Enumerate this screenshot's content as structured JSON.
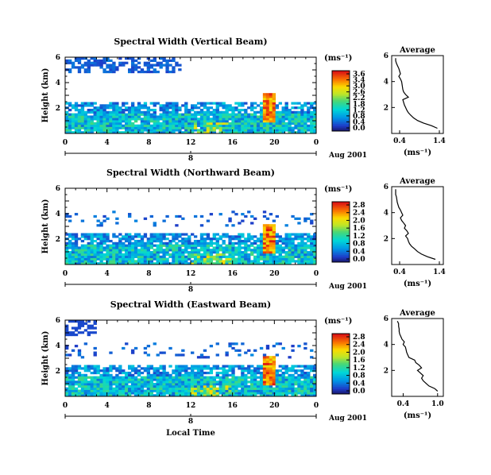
{
  "x_axis_label": "Local Time",
  "date_label": "Aug 2001",
  "colorbar_unit": "(ms⁻¹)",
  "avg_xlabel": "(ms⁻¹)",
  "chart_data": [
    {
      "type": "heatmap",
      "title": "Spectral Width (Vertical Beam)",
      "ylabel": "Height (km)",
      "xlabel": "",
      "x_ticks": [
        "0",
        "4",
        "8",
        "12",
        "16",
        "20",
        "0"
      ],
      "x_range": [
        0,
        24
      ],
      "y_ticks": [
        "2",
        "4",
        "6"
      ],
      "y_range": [
        0,
        6
      ],
      "day_label": "8",
      "colorbar_ticks": [
        "3.6",
        "3.4",
        "3.0",
        "2.6",
        "2.2",
        "1.8",
        "1.2",
        "0.8",
        "0.4",
        "0.0"
      ],
      "colorbar_range": [
        0.0,
        3.6
      ],
      "avg": {
        "title": "Average",
        "x_ticks": [
          "0.4",
          "1.4"
        ],
        "x_range": [
          0.2,
          1.5
        ],
        "y_ticks": [
          "2",
          "4",
          "6"
        ],
        "y_range": [
          0,
          6
        ],
        "height_km": [
          0.4,
          0.6,
          0.8,
          1.0,
          1.2,
          1.4,
          1.6,
          1.8,
          2.0,
          2.2,
          2.4,
          2.6,
          2.8,
          3.0,
          3.2,
          3.4,
          3.6,
          3.8,
          4.0,
          4.2,
          4.4,
          4.6,
          4.8,
          5.0,
          5.2,
          5.4,
          5.6,
          5.8
        ],
        "width_ms": [
          1.35,
          1.2,
          1.0,
          0.85,
          0.75,
          0.68,
          0.62,
          0.58,
          0.55,
          0.52,
          0.5,
          0.48,
          0.62,
          0.55,
          0.5,
          0.48,
          0.47,
          0.46,
          0.45,
          0.42,
          0.38,
          0.42,
          0.4,
          0.38,
          0.35,
          0.32,
          0.3,
          0.3
        ]
      }
    },
    {
      "type": "heatmap",
      "title": "Spectral Width (Northward Beam)",
      "ylabel": "Height (km)",
      "xlabel": "",
      "x_ticks": [
        "0",
        "4",
        "8",
        "12",
        "16",
        "20",
        "0"
      ],
      "x_range": [
        0,
        24
      ],
      "y_ticks": [
        "2",
        "4",
        "6"
      ],
      "y_range": [
        0,
        6
      ],
      "day_label": "8",
      "colorbar_ticks": [
        "2.8",
        "2.4",
        "2.0",
        "1.6",
        "1.2",
        "0.8",
        "0.4",
        "0.0"
      ],
      "colorbar_range": [
        0.0,
        2.8
      ],
      "avg": {
        "title": "Average",
        "x_ticks": [
          "0.4",
          "1.4"
        ],
        "x_range": [
          0.2,
          1.5
        ],
        "y_ticks": [
          "2",
          "4",
          "6"
        ],
        "y_range": [
          0,
          6
        ],
        "height_km": [
          0.4,
          0.6,
          0.8,
          1.0,
          1.2,
          1.4,
          1.6,
          1.8,
          2.0,
          2.2,
          2.4,
          2.6,
          2.8,
          3.0,
          3.2,
          3.4,
          3.6,
          3.8,
          4.0,
          4.2,
          4.4,
          4.6,
          4.8,
          5.0,
          5.2,
          5.4,
          5.6,
          5.8
        ],
        "width_ms": [
          1.3,
          1.1,
          0.95,
          0.85,
          0.78,
          0.7,
          0.65,
          0.62,
          0.6,
          0.55,
          0.62,
          0.58,
          0.52,
          0.55,
          0.5,
          0.45,
          0.42,
          0.48,
          0.45,
          0.42,
          0.38,
          0.36,
          0.34,
          0.33,
          0.32,
          0.3,
          0.3,
          0.3
        ]
      }
    },
    {
      "type": "heatmap",
      "title": "Spectral Width (Eastward Beam)",
      "ylabel": "Height (km)",
      "xlabel": "Local Time",
      "x_ticks": [
        "0",
        "4",
        "8",
        "12",
        "16",
        "20",
        "0"
      ],
      "x_range": [
        0,
        24
      ],
      "y_ticks": [
        "2",
        "4",
        "6"
      ],
      "y_range": [
        0,
        6
      ],
      "day_label": "8",
      "colorbar_ticks": [
        "2.8",
        "2.4",
        "2.0",
        "1.6",
        "1.2",
        "0.8",
        "0.4",
        "0.0"
      ],
      "colorbar_range": [
        0.0,
        2.8
      ],
      "avg": {
        "title": "Average",
        "x_ticks": [
          "0.4",
          "1.0"
        ],
        "x_range": [
          0.2,
          1.1
        ],
        "y_ticks": [
          "2",
          "4",
          "6"
        ],
        "y_range": [
          0,
          6
        ],
        "height_km": [
          0.4,
          0.6,
          0.8,
          1.0,
          1.2,
          1.4,
          1.6,
          1.8,
          2.0,
          2.2,
          2.4,
          2.6,
          2.8,
          3.0,
          3.2,
          3.4,
          3.6,
          3.8,
          4.0,
          4.2,
          4.4,
          4.6,
          4.8,
          5.0,
          5.2,
          5.4,
          5.6,
          5.8
        ],
        "width_ms": [
          1.0,
          0.95,
          0.85,
          0.8,
          0.75,
          0.72,
          0.75,
          0.7,
          0.65,
          0.72,
          0.68,
          0.62,
          0.6,
          0.5,
          0.48,
          0.46,
          0.45,
          0.44,
          0.4,
          0.42,
          0.38,
          0.36,
          0.34,
          0.33,
          0.33,
          0.32,
          0.32,
          0.3
        ]
      }
    }
  ]
}
